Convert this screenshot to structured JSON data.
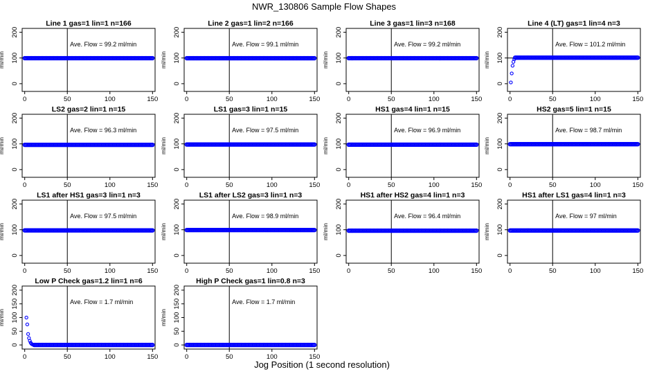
{
  "title": "NWR_130806  Sample Flow Shapes",
  "xlabel": "Jog Position (1 second resolution)",
  "colors": {
    "points": "#0000ff",
    "axis": "#000000",
    "background": "#ffffff"
  },
  "chart_data": [
    {
      "type": "scatter",
      "title": "Line 1 gas=1 lin=1 n=166",
      "annotation": "Ave. Flow = 99.2  ml/min",
      "ylabel": "ml/min",
      "xlim": [
        -3,
        153
      ],
      "ylim": [
        -30,
        215
      ],
      "xticks": [
        0,
        50,
        100,
        150
      ],
      "yticks": [
        0,
        100,
        200
      ],
      "vline": 50,
      "hline": 100,
      "series": [
        {
          "x_range": [
            0,
            150
          ],
          "values": [
            99.2
          ]
        }
      ]
    },
    {
      "type": "scatter",
      "title": "Line 2 gas=1 lin=2 n=166",
      "annotation": "Ave. Flow = 99.1  ml/min",
      "ylabel": "ml/min",
      "xlim": [
        -3,
        153
      ],
      "ylim": [
        -30,
        215
      ],
      "xticks": [
        0,
        50,
        100,
        150
      ],
      "yticks": [
        0,
        100,
        200
      ],
      "vline": 50,
      "hline": 100,
      "series": [
        {
          "x_range": [
            0,
            150
          ],
          "values": [
            99.1
          ]
        }
      ]
    },
    {
      "type": "scatter",
      "title": "Line 3 gas=1 lin=3 n=168",
      "annotation": "Ave. Flow = 99.2  ml/min",
      "ylabel": "ml/min",
      "xlim": [
        -3,
        153
      ],
      "ylim": [
        -30,
        215
      ],
      "xticks": [
        0,
        50,
        100,
        150
      ],
      "yticks": [
        0,
        100,
        200
      ],
      "vline": 50,
      "hline": 100,
      "series": [
        {
          "x_range": [
            0,
            150
          ],
          "values": [
            99.2
          ]
        }
      ]
    },
    {
      "type": "scatter",
      "title": "Line 4 (LT) gas=1 lin=4 n=3",
      "annotation": "Ave. Flow = 101.2  ml/min",
      "ylabel": "ml/min",
      "xlim": [
        -3,
        153
      ],
      "ylim": [
        -30,
        215
      ],
      "xticks": [
        0,
        50,
        100,
        150
      ],
      "yticks": [
        0,
        100,
        200
      ],
      "vline": 50,
      "hline": 100,
      "series": [
        {
          "x_range": [
            0,
            150
          ],
          "values": [
            101.2
          ],
          "start_points": [
            [
              1,
              5
            ],
            [
              2,
              40
            ],
            [
              3,
              70
            ],
            [
              4,
              85
            ],
            [
              5,
              95
            ]
          ]
        }
      ]
    },
    {
      "type": "scatter",
      "title": "LS2 gas=2 lin=1 n=15",
      "annotation": "Ave. Flow = 96.3  ml/min",
      "ylabel": "ml/min",
      "xlim": [
        -3,
        153
      ],
      "ylim": [
        -30,
        215
      ],
      "xticks": [
        0,
        50,
        100,
        150
      ],
      "yticks": [
        0,
        100,
        200
      ],
      "vline": 50,
      "hline": 100,
      "series": [
        {
          "x_range": [
            0,
            150
          ],
          "values": [
            96.3
          ]
        }
      ]
    },
    {
      "type": "scatter",
      "title": "LS1 gas=3 lin=1 n=15",
      "annotation": "Ave. Flow = 97.5  ml/min",
      "ylabel": "ml/min",
      "xlim": [
        -3,
        153
      ],
      "ylim": [
        -30,
        215
      ],
      "xticks": [
        0,
        50,
        100,
        150
      ],
      "yticks": [
        0,
        100,
        200
      ],
      "vline": 50,
      "hline": 100,
      "series": [
        {
          "x_range": [
            0,
            150
          ],
          "values": [
            97.5
          ]
        }
      ]
    },
    {
      "type": "scatter",
      "title": "HS1 gas=4 lin=1 n=15",
      "annotation": "Ave. Flow = 96.9  ml/min",
      "ylabel": "ml/min",
      "xlim": [
        -3,
        153
      ],
      "ylim": [
        -30,
        215
      ],
      "xticks": [
        0,
        50,
        100,
        150
      ],
      "yticks": [
        0,
        100,
        200
      ],
      "vline": 50,
      "hline": 100,
      "series": [
        {
          "x_range": [
            0,
            150
          ],
          "values": [
            96.9
          ]
        }
      ]
    },
    {
      "type": "scatter",
      "title": "HS2 gas=5 lin=1 n=15",
      "annotation": "Ave. Flow = 98.7  ml/min",
      "ylabel": "ml/min",
      "xlim": [
        -3,
        153
      ],
      "ylim": [
        -30,
        215
      ],
      "xticks": [
        0,
        50,
        100,
        150
      ],
      "yticks": [
        0,
        100,
        200
      ],
      "vline": 50,
      "hline": 100,
      "series": [
        {
          "x_range": [
            0,
            150
          ],
          "values": [
            98.7
          ]
        }
      ]
    },
    {
      "type": "scatter",
      "title": "LS1 after HS1 gas=3 lin=1 n=3",
      "annotation": "Ave. Flow = 97.5  ml/min",
      "ylabel": "ml/min",
      "xlim": [
        -3,
        153
      ],
      "ylim": [
        -30,
        215
      ],
      "xticks": [
        0,
        50,
        100,
        150
      ],
      "yticks": [
        0,
        100,
        200
      ],
      "vline": 50,
      "hline": 100,
      "series": [
        {
          "x_range": [
            0,
            150
          ],
          "values": [
            97.5
          ]
        }
      ]
    },
    {
      "type": "scatter",
      "title": "LS1 after LS2 gas=3 lin=1 n=3",
      "annotation": "Ave. Flow = 98.9  ml/min",
      "ylabel": "ml/min",
      "xlim": [
        -3,
        153
      ],
      "ylim": [
        -30,
        215
      ],
      "xticks": [
        0,
        50,
        100,
        150
      ],
      "yticks": [
        0,
        100,
        200
      ],
      "vline": 50,
      "hline": 100,
      "series": [
        {
          "x_range": [
            0,
            150
          ],
          "values": [
            98.9
          ]
        }
      ]
    },
    {
      "type": "scatter",
      "title": "HS1 after HS2 gas=4 lin=1 n=3",
      "annotation": "Ave. Flow = 96.4  ml/min",
      "ylabel": "ml/min",
      "xlim": [
        -3,
        153
      ],
      "ylim": [
        -30,
        215
      ],
      "xticks": [
        0,
        50,
        100,
        150
      ],
      "yticks": [
        0,
        100,
        200
      ],
      "vline": 50,
      "hline": 100,
      "series": [
        {
          "x_range": [
            0,
            150
          ],
          "values": [
            96.4
          ]
        }
      ]
    },
    {
      "type": "scatter",
      "title": "HS1 after LS1 gas=4 lin=1 n=3",
      "annotation": "Ave. Flow = 97  ml/min",
      "ylabel": "ml/min",
      "xlim": [
        -3,
        153
      ],
      "ylim": [
        -30,
        215
      ],
      "xticks": [
        0,
        50,
        100,
        150
      ],
      "yticks": [
        0,
        100,
        200
      ],
      "vline": 50,
      "hline": 100,
      "series": [
        {
          "x_range": [
            0,
            150
          ],
          "values": [
            97
          ]
        }
      ]
    },
    {
      "type": "scatter",
      "title": "Low P Check gas=1.2 lin=1 n=6",
      "annotation": "Ave. Flow = 1.7  ml/min",
      "ylabel": "ml/min",
      "xlim": [
        -3,
        153
      ],
      "ylim": [
        -15,
        215
      ],
      "xticks": [
        0,
        50,
        100,
        150
      ],
      "yticks": [
        0,
        50,
        100,
        150,
        200
      ],
      "vline": 50,
      "hline": null,
      "series": [
        {
          "x_range": [
            0,
            150
          ],
          "values": [
            0
          ],
          "start_points": [
            [
              2,
              100
            ],
            [
              3,
              75
            ],
            [
              4,
              40
            ],
            [
              5,
              25
            ],
            [
              6,
              15
            ],
            [
              7,
              8
            ],
            [
              8,
              4
            ],
            [
              9,
              2
            ],
            [
              10,
              1
            ]
          ]
        }
      ]
    },
    {
      "type": "scatter",
      "title": "High P Check gas=1 lin=0.8 n=3",
      "annotation": "Ave. Flow = 1.7  ml/min",
      "ylabel": "ml/min",
      "xlim": [
        -3,
        153
      ],
      "ylim": [
        -15,
        215
      ],
      "xticks": [
        0,
        50,
        100,
        150
      ],
      "yticks": [
        0,
        50,
        100,
        150,
        200
      ],
      "vline": 50,
      "hline": null,
      "series": [
        {
          "x_range": [
            0,
            150
          ],
          "values": [
            0
          ]
        }
      ]
    }
  ]
}
